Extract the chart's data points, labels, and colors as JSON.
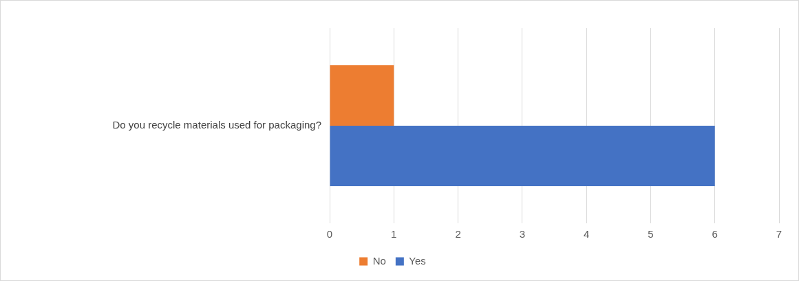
{
  "chart_data": {
    "type": "bar",
    "orientation": "horizontal",
    "categories": [
      "Do you recycle materials used for packaging?"
    ],
    "series": [
      {
        "name": "No",
        "color": "#ed7d31",
        "values": [
          1
        ]
      },
      {
        "name": "Yes",
        "color": "#4472c4",
        "values": [
          6
        ]
      }
    ],
    "xlim": [
      0,
      7
    ],
    "xticks": [
      0,
      1,
      2,
      3,
      4,
      5,
      6,
      7
    ],
    "grid": "x",
    "legend": "bottom"
  }
}
